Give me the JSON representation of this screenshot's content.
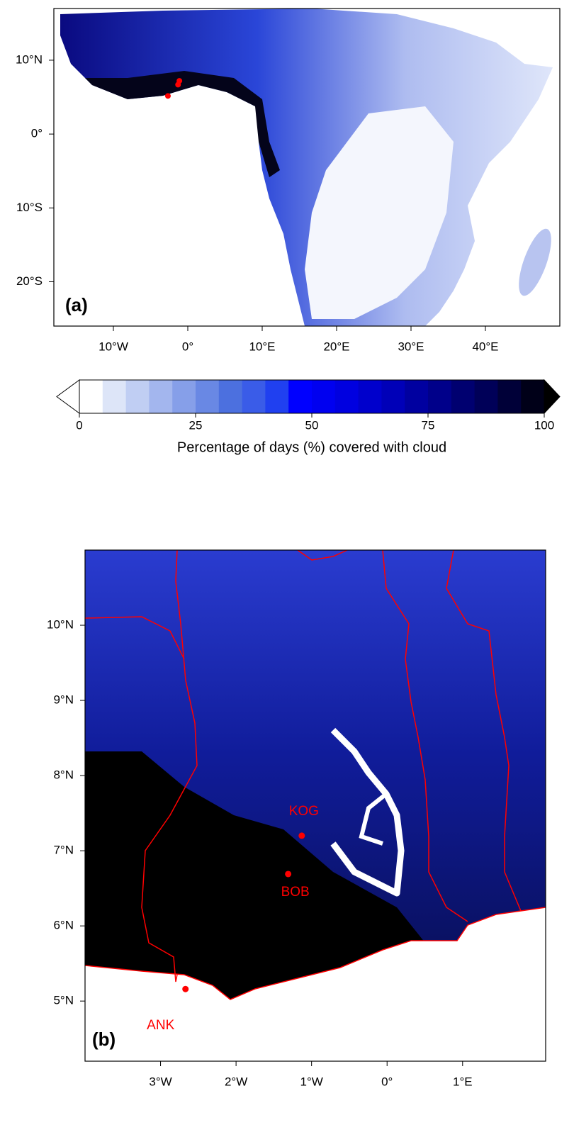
{
  "panel_a": {
    "label": "(a)",
    "xlim": [
      -18,
      50
    ],
    "ylim": [
      -26,
      17
    ],
    "xticks": [
      {
        "value": -10,
        "label": "10°W"
      },
      {
        "value": 0,
        "label": "0°"
      },
      {
        "value": 10,
        "label": "10°E"
      },
      {
        "value": 20,
        "label": "20°E"
      },
      {
        "value": 30,
        "label": "30°E"
      },
      {
        "value": 40,
        "label": "40°E"
      }
    ],
    "yticks": [
      {
        "value": 10,
        "label": "10°N"
      },
      {
        "value": 0,
        "label": "0°"
      },
      {
        "value": -10,
        "label": "10°S"
      },
      {
        "value": -20,
        "label": "20°S"
      }
    ]
  },
  "colorbar": {
    "lim": [
      0,
      100
    ],
    "ticks": [
      0,
      25,
      50,
      75,
      100
    ],
    "label": "Percentage of days (%) covered with cloud",
    "colors": [
      "#ffffff",
      "#dde5f8",
      "#c0cef3",
      "#a3b6ee",
      "#869fe9",
      "#6988e4",
      "#4c70df",
      "#3a5ce8",
      "#2040f0",
      "#0000ff",
      "#0000f0",
      "#0000e0",
      "#0000cc",
      "#0000b8",
      "#0000a0",
      "#00008a",
      "#000070",
      "#000058",
      "#000038",
      "#000018"
    ],
    "extend_colors": [
      "#ffffff",
      "#000000"
    ]
  },
  "panel_b": {
    "label": "(b)",
    "xlim": [
      -4,
      2.1
    ],
    "ylim": [
      4.2,
      11
    ],
    "xticks": [
      {
        "value": -3,
        "label": "3°W"
      },
      {
        "value": -2,
        "label": "2°W"
      },
      {
        "value": -1,
        "label": "1°W"
      },
      {
        "value": 0,
        "label": "0°"
      },
      {
        "value": 1,
        "label": "1°E"
      }
    ],
    "yticks": [
      {
        "value": 10,
        "label": "10°N"
      },
      {
        "value": 9,
        "label": "9°N"
      },
      {
        "value": 8,
        "label": "8°N"
      },
      {
        "value": 7,
        "label": "7°N"
      },
      {
        "value": 6,
        "label": "6°N"
      },
      {
        "value": 5,
        "label": "5°N"
      }
    ]
  },
  "stations": [
    {
      "name": "KOG",
      "lon": -1.13,
      "lat": 7.2
    },
    {
      "name": "BOB",
      "lon": -1.31,
      "lat": 6.69
    },
    {
      "name": "ANK",
      "lon": -2.67,
      "lat": 5.16
    }
  ],
  "station_color": "#ff0000"
}
